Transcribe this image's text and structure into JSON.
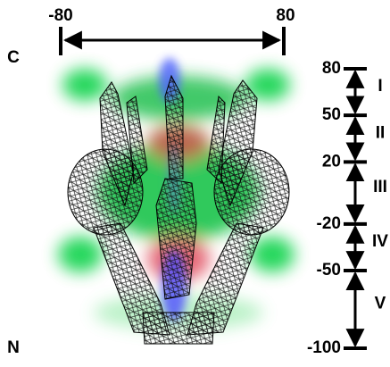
{
  "top_scale": {
    "start": -80,
    "end": 80
  },
  "terminals": {
    "top": "C",
    "bottom": "N"
  },
  "ruler": {
    "ticks": [
      80,
      50,
      20,
      -20,
      -50,
      -100
    ],
    "regions": [
      "I",
      "II",
      "III",
      "IV",
      "V"
    ]
  }
}
